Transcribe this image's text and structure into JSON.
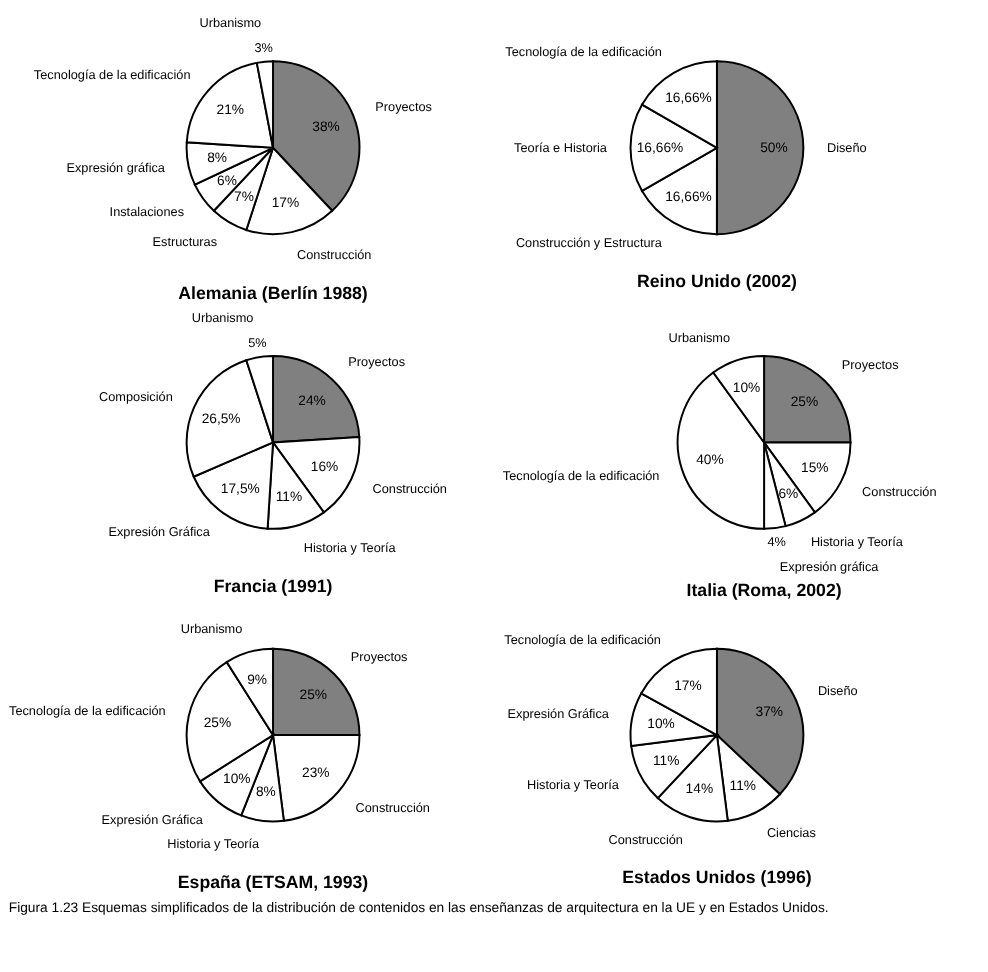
{
  "chart_data": [
    {
      "type": "pie",
      "title": "Alemania (Berlín 1988)",
      "categories": [
        "Proyectos",
        "Construcción",
        "Estructuras",
        "Instalaciones",
        "Expresión gráfica",
        "Tecnología de la edificación",
        "Urbanismo"
      ],
      "values": [
        38,
        17,
        7,
        6,
        8,
        21,
        3
      ],
      "value_labels": [
        "38%",
        "17%",
        "7%",
        "6%",
        "8%",
        "21%",
        "3%"
      ],
      "colors": [
        "#808080",
        "#ffffff",
        "#ffffff",
        "#ffffff",
        "#ffffff",
        "#ffffff",
        "#ffffff"
      ],
      "legend": false
    },
    {
      "type": "pie",
      "title": "Reino Unido (2002)",
      "categories": [
        "Diseño",
        "Construcción y Estructura",
        "Teoría e Historia",
        "Tecnología de la edificación"
      ],
      "values": [
        50,
        16.66,
        16.66,
        16.66
      ],
      "value_labels": [
        "50%",
        "16,66%",
        "16,66%",
        "16,66%"
      ],
      "colors": [
        "#808080",
        "#ffffff",
        "#ffffff",
        "#ffffff"
      ],
      "legend": false
    },
    {
      "type": "pie",
      "title": "Francia (1991)",
      "categories": [
        "Proyectos",
        "Construcción",
        "Historia y Teoría",
        "Expresión Gráfica",
        "Composición",
        "Urbanismo"
      ],
      "values": [
        24,
        16,
        11,
        17.5,
        26.5,
        5
      ],
      "value_labels": [
        "24%",
        "16%",
        "11%",
        "17,5%",
        "26,5%",
        "5%"
      ],
      "colors": [
        "#808080",
        "#ffffff",
        "#ffffff",
        "#ffffff",
        "#ffffff",
        "#ffffff"
      ],
      "legend": false
    },
    {
      "type": "pie",
      "title": "Italia (Roma, 2002)",
      "categories": [
        "Proyectos",
        "Construcción",
        "Historia y Teoría",
        "Expresión gráfica",
        "Tecnología de la edificación",
        "Urbanismo"
      ],
      "values": [
        25,
        15,
        6,
        4,
        40,
        10
      ],
      "value_labels": [
        "25%",
        "15%",
        "6%",
        "4%",
        "40%",
        "10%"
      ],
      "colors": [
        "#808080",
        "#ffffff",
        "#ffffff",
        "#ffffff",
        "#ffffff",
        "#ffffff"
      ],
      "legend": false
    },
    {
      "type": "pie",
      "title": "España (ETSAM, 1993)",
      "categories": [
        "Proyectos",
        "Construcción",
        "Historia y Teoría",
        "Expresión Gráfica",
        "Tecnología de la edificación",
        "Urbanismo"
      ],
      "values": [
        25,
        23,
        8,
        10,
        25,
        9
      ],
      "value_labels": [
        "25%",
        "23%",
        "8%",
        "10%",
        "25%",
        "9%"
      ],
      "colors": [
        "#808080",
        "#ffffff",
        "#ffffff",
        "#ffffff",
        "#ffffff",
        "#ffffff"
      ],
      "legend": false
    },
    {
      "type": "pie",
      "title": "Estados Unidos (1996)",
      "categories": [
        "Diseño",
        "Ciencias",
        "Construcción",
        "Historia y Teoría",
        "Expresión Gráfica",
        "Tecnología de la edificación"
      ],
      "values": [
        37,
        11,
        14,
        11,
        10,
        17
      ],
      "value_labels": [
        "37%",
        "11%",
        "14%",
        "11%",
        "10%",
        "17%"
      ],
      "colors": [
        "#808080",
        "#ffffff",
        "#ffffff",
        "#ffffff",
        "#ffffff",
        "#ffffff"
      ],
      "legend": false,
      "annotations": [
        "Figura 1.23 Esquemas simplificados de la distribución de contenidos en las enseñanzas de arquitectura en la UE y en Estados Unidos."
      ]
    }
  ]
}
